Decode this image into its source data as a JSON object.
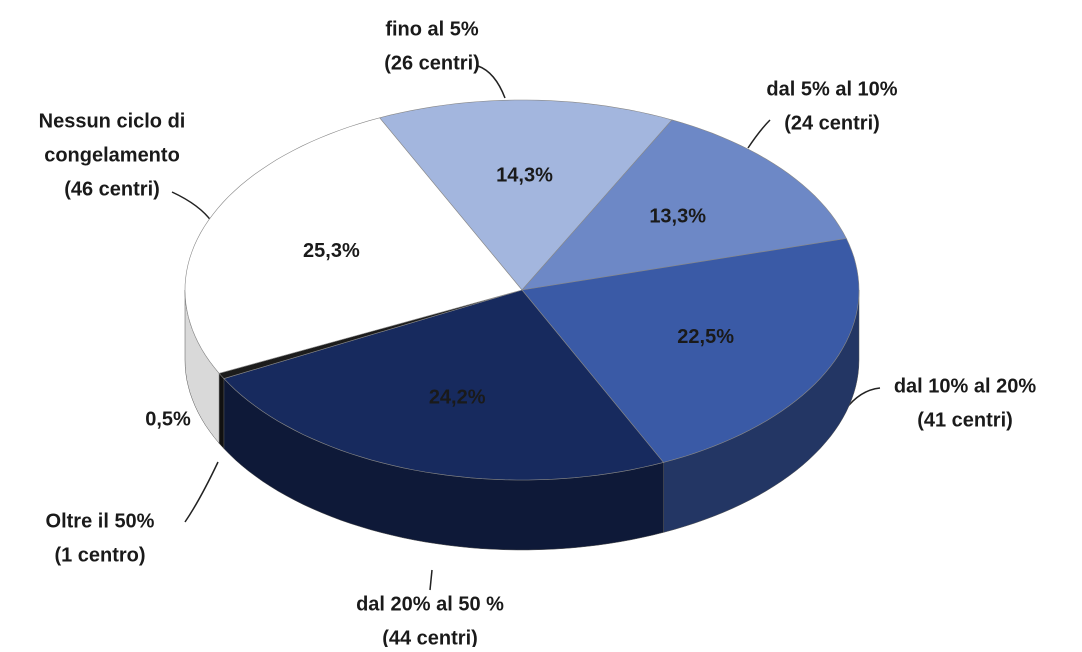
{
  "chart_data": {
    "type": "pie3d",
    "categories": [
      [
        "fino al 5%",
        "(26 centri)"
      ],
      [
        "dal 5% al 10%",
        "(24 centri)"
      ],
      [
        "dal 10% al 20%",
        "(41 centri)"
      ],
      [
        "dal 20% al 50 %",
        "(44 centri)"
      ],
      [
        "Oltre il 50%",
        "(1 centro)"
      ],
      [
        "Nessun ciclo di",
        "congelamento",
        "(46 centri)"
      ]
    ],
    "values": [
      14.3,
      13.3,
      22.5,
      24.2,
      0.5,
      25.3
    ],
    "value_labels": [
      "14,3%",
      "13,3%",
      "22,5%",
      "24,2%",
      "0,5%",
      "25,3%"
    ],
    "colors": [
      "#a3b6de",
      "#6d88c6",
      "#3a5aa6",
      "#172a5e",
      "#1c1c1c",
      "#ffffff"
    ]
  }
}
